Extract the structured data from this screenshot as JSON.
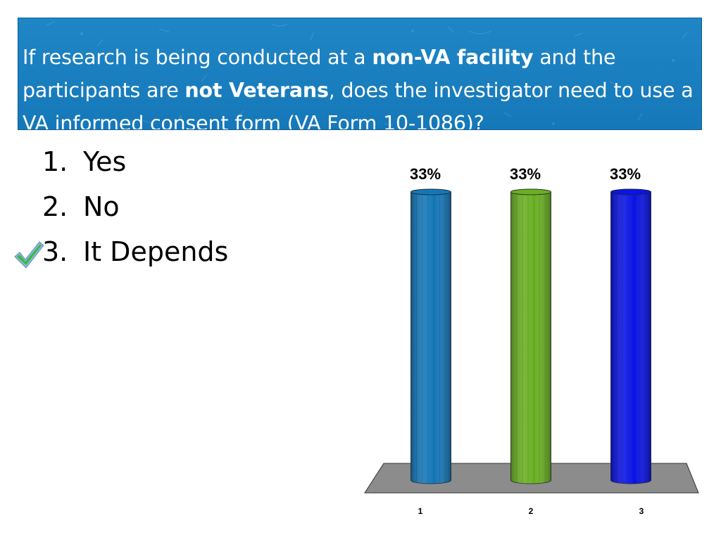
{
  "question": {
    "p1": "If research is being conducted at a ",
    "b1": "non-VA facility",
    "p2": " and the participants are ",
    "b2": "not Veterans",
    "p3": ", does the investigator need to use a VA informed consent form (VA Form 10-1086)?"
  },
  "options": [
    {
      "num": "1.",
      "label": "Yes"
    },
    {
      "num": "2.",
      "label": "No"
    },
    {
      "num": "3.",
      "label": "It Depends"
    }
  ],
  "correct_option_icon": "checkmark-icon",
  "colors": {
    "title_bg": "#1a80c1",
    "bar1": "#1478b8",
    "bar2": "#6ab023",
    "bar3": "#0a14e6",
    "floor": "#8c8c8c"
  },
  "chart_data": {
    "type": "bar",
    "categories": [
      "1",
      "2",
      "3"
    ],
    "values": [
      33,
      33,
      33
    ],
    "value_labels": [
      "33%",
      "33%",
      "33%"
    ],
    "ylim": [
      0,
      33
    ],
    "title": "",
    "xlabel": "",
    "ylabel": ""
  }
}
